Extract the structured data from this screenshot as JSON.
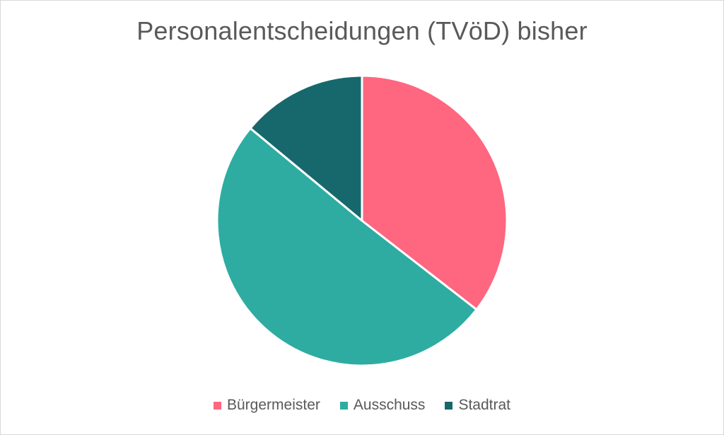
{
  "chart_data": {
    "type": "pie",
    "title": "Personalentscheidungen (TVöD) bisher",
    "categories": [
      "Bürgermeister",
      "Ausschuss",
      "Stadtrat"
    ],
    "values": [
      35.5,
      50.5,
      14
    ],
    "colors": [
      "#ff6680",
      "#2eaca2",
      "#17686c"
    ],
    "legend_position": "bottom"
  }
}
